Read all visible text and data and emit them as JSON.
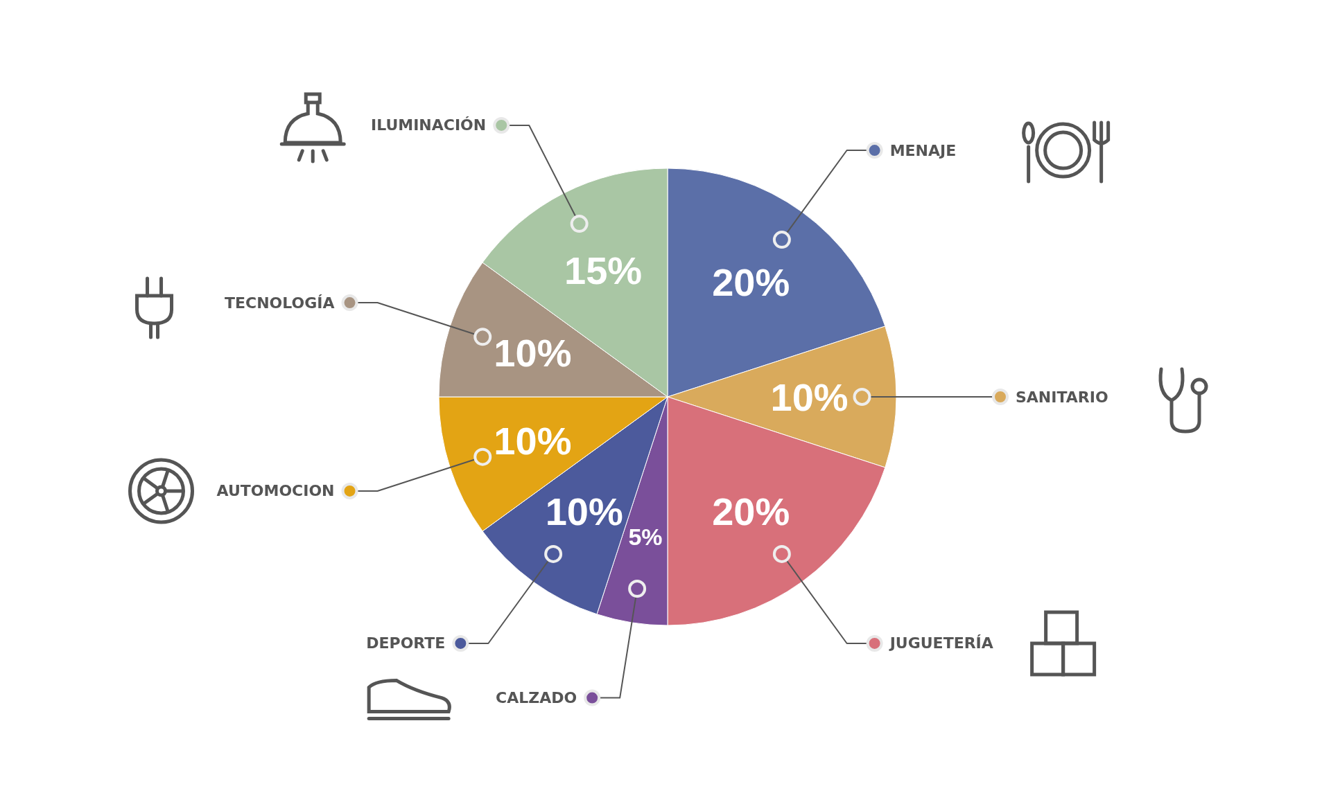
{
  "chart_data": {
    "type": "pie",
    "categories": [
      "MENAJE",
      "SANITARIO",
      "JUGUETERÍA",
      "CALZADO",
      "DEPORTE",
      "AUTOMOCION",
      "TECNOLOGÍA",
      "ILUMINACIÓN"
    ],
    "values": [
      20,
      10,
      20,
      5,
      10,
      10,
      10,
      15
    ],
    "value_labels": [
      "20%",
      "10%",
      "20%",
      "5%",
      "10%",
      "10%",
      "10%",
      "15%"
    ],
    "legend": "left",
    "colors": [
      "#5b6fa8",
      "#d9aa5c",
      "#d8707a",
      "#7a4f9a",
      "#4c5a9c",
      "#e3a414",
      "#a89482",
      "#a9c6a4"
    ]
  }
}
